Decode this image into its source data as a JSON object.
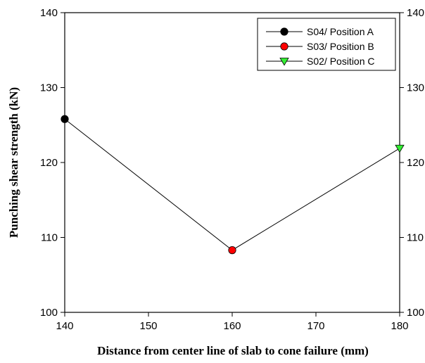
{
  "chart_data": {
    "type": "line",
    "title": "",
    "xlabel": "Distance from center line of slab to cone failure (mm)",
    "ylabel": "Punching shear strength (kN)",
    "xlim": [
      140,
      180
    ],
    "ylim": [
      100,
      140
    ],
    "xticks": [
      140,
      150,
      160,
      170,
      180
    ],
    "yticks": [
      100,
      110,
      120,
      130,
      140
    ],
    "right_axis_ticks": true,
    "grid": false,
    "legend_position": "top-right",
    "line_color": "#000000",
    "series": [
      {
        "name": "S04/ Position A",
        "x": 140,
        "y": 125.8,
        "marker": "circle",
        "color": "#000000"
      },
      {
        "name": "S03/ Position B",
        "x": 160,
        "y": 108.3,
        "marker": "circle",
        "color": "#ff0000"
      },
      {
        "name": "S02/ Position C",
        "x": 180,
        "y": 121.9,
        "marker": "triangle-down",
        "color": "#33ee33"
      }
    ]
  }
}
